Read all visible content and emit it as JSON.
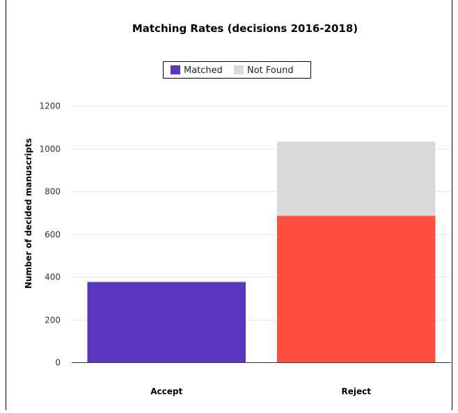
{
  "chart_data": {
    "type": "bar",
    "stacked": true,
    "title": "Matching Rates (decisions 2016-2018)",
    "xlabel": "",
    "ylabel": "Number of decided manuscripts",
    "categories": [
      "Accept",
      "Reject"
    ],
    "series": [
      {
        "name": "Matched",
        "values": [
          375,
          685
        ],
        "color": "#5c35be",
        "bar_colors": [
          "#5c35be",
          "#ff4f3f"
        ]
      },
      {
        "name": "Not Found",
        "values": [
          5,
          347
        ],
        "color": "#d9d9d9"
      }
    ],
    "ylim": [
      0,
      1200
    ],
    "yticks": [
      0,
      200,
      400,
      600,
      800,
      1000,
      1200
    ],
    "legend": "top-center",
    "grid": true
  }
}
